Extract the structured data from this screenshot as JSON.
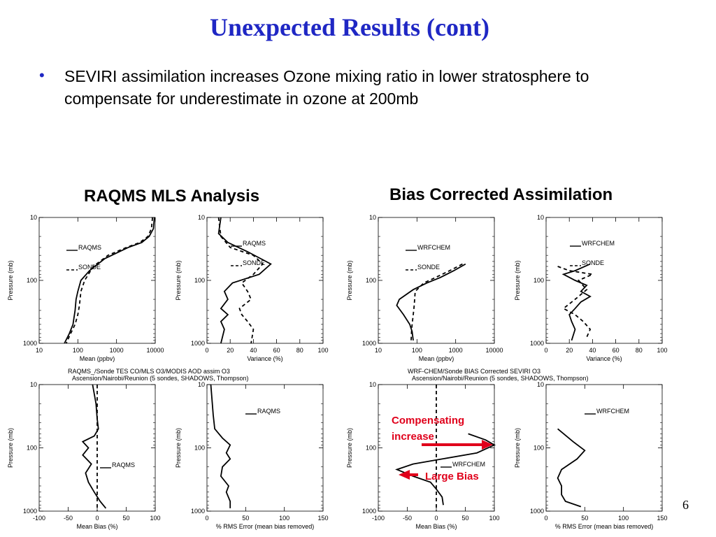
{
  "slide": {
    "title": "Unexpected Results (cont)",
    "bullet": "SEVIRI assimilation increases Ozone mixing ratio in lower stratosphere to compensate for underestimate in ozone at 200mb",
    "left_heading": "RAQMS MLS Analysis",
    "right_heading": "Bias Corrected Assimilation",
    "page_number": "6",
    "accent_color": "#1f27c4",
    "arrow_color": "#e0001b"
  },
  "chart_data": [
    {
      "type": "line",
      "panel": "raqms-mean",
      "xlabel": "Mean (ppbv)",
      "ylabel": "Pressure (mb)",
      "xscale": "log",
      "yscale": "log",
      "xlim": [
        10,
        10000
      ],
      "ylim": [
        1000,
        10
      ],
      "xticks": [
        "10",
        "100",
        "1000",
        "10000"
      ],
      "yticks": [
        "10",
        "100",
        "1000"
      ],
      "series": [
        {
          "name": "RAQMS",
          "style": "solid",
          "points": [
            [
              9500,
              10
            ],
            [
              9000,
              15
            ],
            [
              7000,
              20
            ],
            [
              4500,
              25
            ],
            [
              2000,
              30
            ],
            [
              500,
              45
            ],
            [
              200,
              70
            ],
            [
              120,
              100
            ],
            [
              100,
              150
            ],
            [
              90,
              200
            ],
            [
              85,
              300
            ],
            [
              75,
              500
            ],
            [
              60,
              700
            ],
            [
              45,
              1000
            ]
          ]
        },
        {
          "name": "SONDE",
          "style": "dashed",
          "points": [
            [
              8500,
              10
            ],
            [
              8000,
              15
            ],
            [
              6500,
              20
            ],
            [
              4000,
              25
            ],
            [
              1800,
              30
            ],
            [
              600,
              40
            ],
            [
              250,
              60
            ],
            [
              150,
              100
            ],
            [
              120,
              150
            ],
            [
              110,
              250
            ],
            [
              100,
              350
            ],
            [
              85,
              500
            ],
            [
              65,
              700
            ],
            [
              50,
              1000
            ]
          ]
        }
      ],
      "caption": "RAQMS_/Sonde TES CO/MLS O3/MODIS AOD assim O3",
      "caption2": "Ascension/Nairobi/Reunion (5 sondes, SHADOWS, Thompson)"
    },
    {
      "type": "line",
      "panel": "raqms-variance",
      "xlabel": "Variance (%)",
      "ylabel": "Pressure (mb)",
      "xscale": "linear",
      "yscale": "log",
      "xlim": [
        0,
        100
      ],
      "ylim": [
        1000,
        10
      ],
      "xticks": [
        "0",
        "20",
        "40",
        "60",
        "80",
        "100"
      ],
      "yticks": [
        "10",
        "100",
        "1000"
      ],
      "series": [
        {
          "name": "RAQMS",
          "style": "solid",
          "points": [
            [
              12,
              10
            ],
            [
              10,
              18
            ],
            [
              18,
              25
            ],
            [
              35,
              35
            ],
            [
              55,
              55
            ],
            [
              45,
              80
            ],
            [
              22,
              110
            ],
            [
              15,
              150
            ],
            [
              18,
              200
            ],
            [
              12,
              280
            ],
            [
              18,
              350
            ],
            [
              12,
              450
            ],
            [
              15,
              600
            ],
            [
              12,
              1000
            ]
          ]
        },
        {
          "name": "SONDE",
          "style": "dashed",
          "points": [
            [
              10,
              10
            ],
            [
              12,
              20
            ],
            [
              20,
              30
            ],
            [
              40,
              40
            ],
            [
              48,
              55
            ],
            [
              40,
              80
            ],
            [
              30,
              110
            ],
            [
              35,
              150
            ],
            [
              38,
              200
            ],
            [
              28,
              280
            ],
            [
              30,
              350
            ],
            [
              35,
              450
            ],
            [
              40,
              600
            ],
            [
              38,
              1000
            ]
          ]
        }
      ]
    },
    {
      "type": "line",
      "panel": "wrf-mean",
      "xlabel": "Mean (ppbv)",
      "ylabel": "Pressure (mb)",
      "xscale": "log",
      "yscale": "log",
      "xlim": [
        10,
        10000
      ],
      "ylim": [
        1000,
        10
      ],
      "xticks": [
        "10",
        "100",
        "1000",
        "10000"
      ],
      "yticks": [
        "10",
        "100",
        "1000"
      ],
      "series": [
        {
          "name": "WRFCHEM",
          "style": "solid",
          "points": [
            [
              1800,
              55
            ],
            [
              900,
              70
            ],
            [
              400,
              90
            ],
            [
              180,
              110
            ],
            [
              80,
              140
            ],
            [
              35,
              200
            ],
            [
              30,
              250
            ],
            [
              45,
              350
            ],
            [
              65,
              500
            ],
            [
              75,
              650
            ],
            [
              80,
              900
            ]
          ]
        },
        {
          "name": "SONDE",
          "style": "dashed",
          "points": [
            [
              1500,
              55
            ],
            [
              700,
              70
            ],
            [
              300,
              90
            ],
            [
              150,
              110
            ],
            [
              90,
              150
            ],
            [
              85,
              250
            ],
            [
              80,
              350
            ],
            [
              75,
              500
            ],
            [
              72,
              700
            ],
            [
              70,
              1000
            ]
          ]
        }
      ],
      "caption": "WRF-CHEM/Sonde BIAS Corrected SEVIRI O3",
      "caption2": "Ascension/Nairobi/Reunion (5 sondes, SHADOWS, Thompson)"
    },
    {
      "type": "line",
      "panel": "wrf-variance",
      "xlabel": "Variance (%)",
      "ylabel": "Pressure (mb)",
      "xscale": "linear",
      "yscale": "log",
      "xlim": [
        0,
        100
      ],
      "ylim": [
        1000,
        10
      ],
      "xticks": [
        "0",
        "20",
        "40",
        "60",
        "80",
        "100"
      ],
      "yticks": [
        "10",
        "100",
        "1000"
      ],
      "series": [
        {
          "name": "WRFCHEM",
          "style": "solid",
          "points": [
            [
              38,
              55
            ],
            [
              25,
              70
            ],
            [
              15,
              80
            ],
            [
              25,
              100
            ],
            [
              35,
              120
            ],
            [
              30,
              150
            ],
            [
              38,
              180
            ],
            [
              30,
              220
            ],
            [
              25,
              280
            ],
            [
              20,
              350
            ],
            [
              22,
              450
            ],
            [
              25,
              600
            ],
            [
              22,
              900
            ]
          ]
        },
        {
          "name": "SONDE",
          "style": "dashed",
          "points": [
            [
              10,
              60
            ],
            [
              20,
              70
            ],
            [
              40,
              80
            ],
            [
              28,
              100
            ],
            [
              35,
              140
            ],
            [
              25,
              200
            ],
            [
              15,
              280
            ],
            [
              25,
              350
            ],
            [
              32,
              450
            ],
            [
              38,
              600
            ],
            [
              35,
              800
            ]
          ]
        }
      ]
    },
    {
      "type": "line",
      "panel": "raqms-bias",
      "xlabel": "Mean Bias (%)",
      "ylabel": "Pressure (mb)",
      "xscale": "linear",
      "yscale": "log",
      "xlim": [
        -100,
        100
      ],
      "ylim": [
        1000,
        10
      ],
      "xticks": [
        "-100",
        "-50",
        "0",
        "50",
        "100"
      ],
      "yticks": [
        "10",
        "100",
        "1000"
      ],
      "series": [
        {
          "name": "RAQMS",
          "style": "solid",
          "points": [
            [
              -8,
              10
            ],
            [
              -2,
              20
            ],
            [
              0,
              35
            ],
            [
              2,
              50
            ],
            [
              -5,
              65
            ],
            [
              -25,
              80
            ],
            [
              -15,
              100
            ],
            [
              -25,
              130
            ],
            [
              -10,
              180
            ],
            [
              -20,
              250
            ],
            [
              -15,
              350
            ],
            [
              -5,
              500
            ],
            [
              5,
              700
            ],
            [
              15,
              900
            ]
          ]
        },
        {
          "name": "zero",
          "style": "dashed",
          "points": [
            [
              0,
              10
            ],
            [
              0,
              1000
            ]
          ]
        }
      ]
    },
    {
      "type": "line",
      "panel": "raqms-rms",
      "xlabel": "% RMS Error (mean bias removed)",
      "ylabel": "Pressure (mb)",
      "xscale": "linear",
      "yscale": "log",
      "xlim": [
        0,
        150
      ],
      "ylim": [
        1000,
        10
      ],
      "xticks": [
        "0",
        "50",
        "100",
        "150"
      ],
      "yticks": [
        "10",
        "100",
        "1000"
      ],
      "series": [
        {
          "name": "RAQMS",
          "style": "solid",
          "points": [
            [
              5,
              10
            ],
            [
              8,
              30
            ],
            [
              10,
              50
            ],
            [
              20,
              70
            ],
            [
              30,
              90
            ],
            [
              25,
              120
            ],
            [
              30,
              150
            ],
            [
              20,
              200
            ],
            [
              18,
              280
            ],
            [
              28,
              400
            ],
            [
              25,
              500
            ],
            [
              30,
              700
            ],
            [
              30,
              900
            ]
          ]
        }
      ]
    },
    {
      "type": "line",
      "panel": "wrf-bias",
      "xlabel": "Mean Bias (%)",
      "ylabel": "Pressure (mb)",
      "xscale": "linear",
      "yscale": "log",
      "xlim": [
        -100,
        100
      ],
      "ylim": [
        1000,
        10
      ],
      "xticks": [
        "-100",
        "-50",
        "0",
        "50",
        "100"
      ],
      "yticks": [
        "10",
        "100",
        "1000"
      ],
      "series": [
        {
          "name": "WRFCHEM",
          "style": "solid",
          "points": [
            [
              55,
              60
            ],
            [
              85,
              75
            ],
            [
              100,
              90
            ],
            [
              70,
              120
            ],
            [
              10,
              150
            ],
            [
              -40,
              180
            ],
            [
              -68,
              220
            ],
            [
              -40,
              280
            ],
            [
              -10,
              350
            ],
            [
              0,
              450
            ],
            [
              10,
              600
            ],
            [
              12,
              800
            ]
          ]
        },
        {
          "name": "zero",
          "style": "dashed",
          "points": [
            [
              0,
              10
            ],
            [
              0,
              1000
            ]
          ]
        }
      ]
    },
    {
      "type": "line",
      "panel": "wrf-rms",
      "xlabel": "% RMS Error (mean bias removed)",
      "ylabel": "Pressure (mb)",
      "xscale": "linear",
      "yscale": "log",
      "xlim": [
        0,
        150
      ],
      "ylim": [
        1000,
        10
      ],
      "xticks": [
        "0",
        "50",
        "100",
        "150"
      ],
      "yticks": [
        "10",
        "100",
        "1000"
      ],
      "series": [
        {
          "name": "WRFCHEM",
          "style": "solid",
          "points": [
            [
              15,
              50
            ],
            [
              35,
              80
            ],
            [
              50,
              110
            ],
            [
              40,
              150
            ],
            [
              20,
              220
            ],
            [
              15,
              300
            ],
            [
              20,
              400
            ],
            [
              20,
              550
            ],
            [
              25,
              700
            ],
            [
              45,
              850
            ]
          ]
        }
      ]
    }
  ],
  "annotations": {
    "compensating": "Compensating increase",
    "large_bias": "Large Bias"
  }
}
